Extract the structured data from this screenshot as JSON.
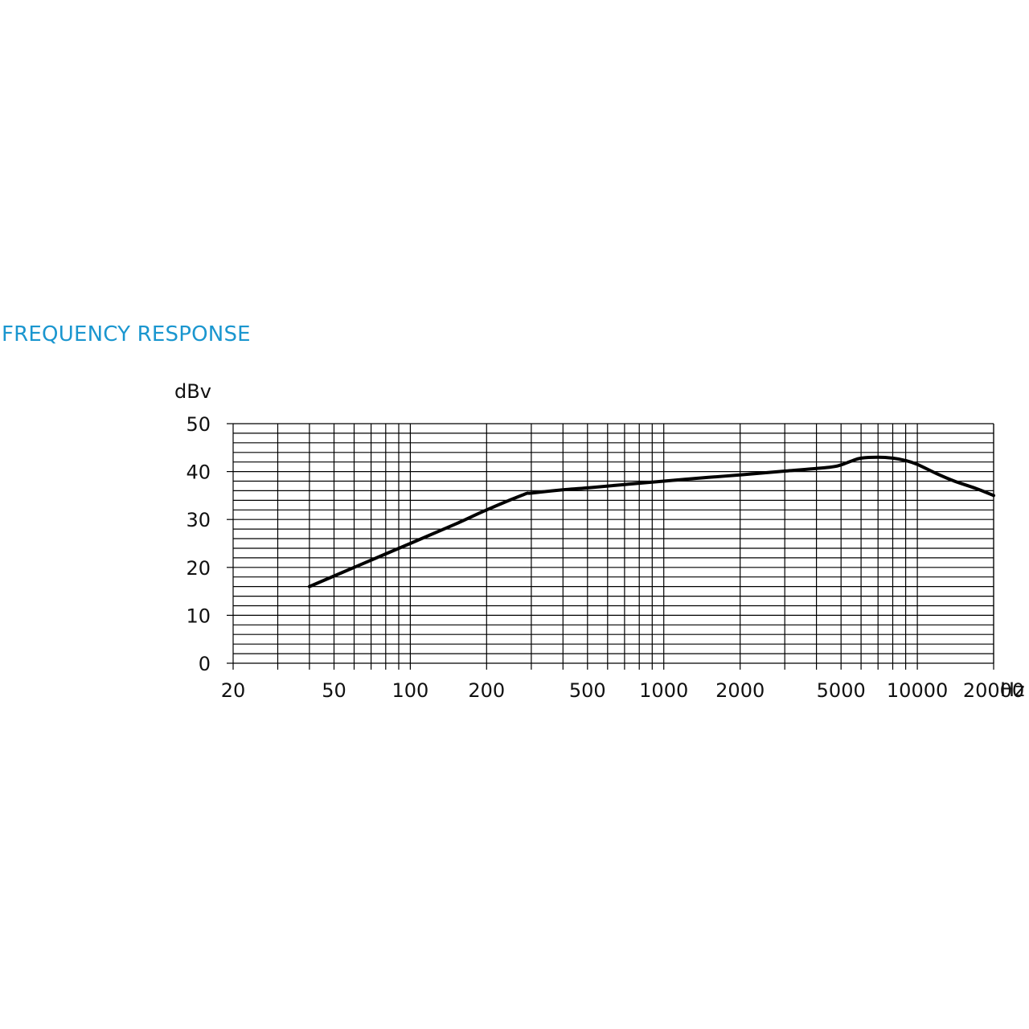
{
  "chart_data": {
    "type": "line",
    "title": "FREQUENCY RESPONSE",
    "ylabel": "dBv",
    "xlabel": "Hz",
    "x_scale": "log",
    "xlim": [
      20,
      20000
    ],
    "ylim": [
      0,
      50
    ],
    "grid": true,
    "x_ticks": [
      20,
      50,
      100,
      200,
      500,
      1000,
      2000,
      5000,
      10000,
      20000
    ],
    "x_tick_labels": [
      "20",
      "50",
      "100",
      "200",
      "500",
      "1000",
      "2000",
      "5000",
      "10000",
      "20000"
    ],
    "y_ticks": [
      0,
      10,
      20,
      30,
      40,
      50
    ],
    "y_tick_labels": [
      "0",
      "10",
      "20",
      "30",
      "40",
      "50"
    ],
    "series": [
      {
        "x": [
          40,
          60,
          100,
          150,
          200,
          280,
          300,
          400,
          500,
          700,
          1000,
          1500,
          2000,
          3000,
          4500,
          5000,
          5500,
          6000,
          7000,
          8000,
          9000,
          10000,
          12000,
          14000,
          17000,
          20000
        ],
        "y": [
          16,
          20,
          25,
          29,
          32,
          35.2,
          35.5,
          36.2,
          36.6,
          37.3,
          38,
          38.8,
          39.3,
          40.1,
          40.9,
          41.4,
          42.2,
          42.8,
          43,
          42.8,
          42.3,
          41.5,
          39.5,
          38,
          36.5,
          35
        ],
        "color": "#000000"
      }
    ]
  }
}
